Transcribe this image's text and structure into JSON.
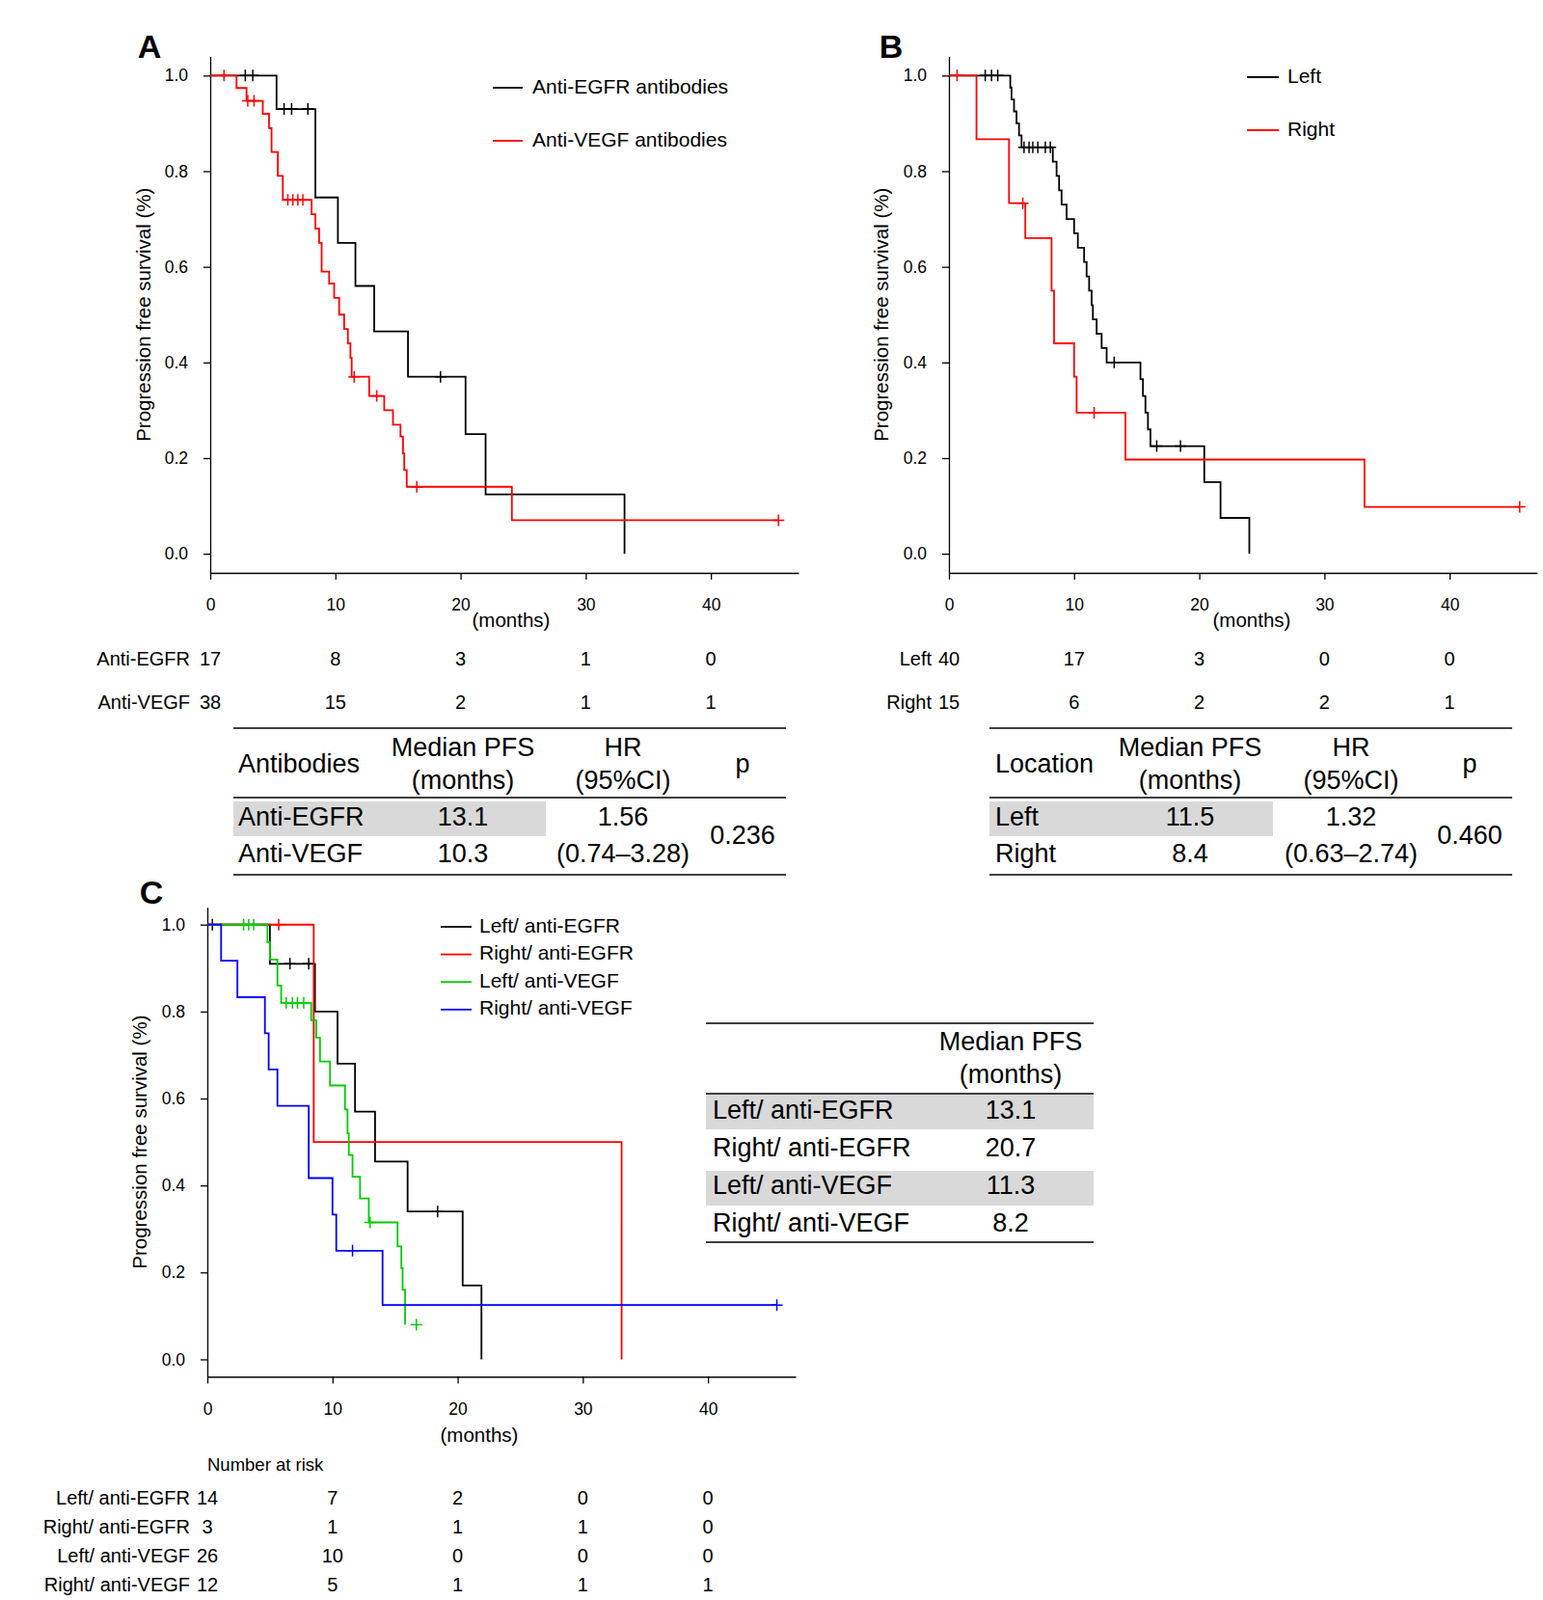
{
  "chart_data": [
    {
      "type": "line",
      "title": "A",
      "x_label": "(months)",
      "y_label": "Progression free survival (%)",
      "xlim": [
        0,
        47
      ],
      "ylim": [
        -0.04,
        1.04
      ],
      "xticks": [
        0,
        10,
        20,
        30,
        40
      ],
      "yticks": [
        {
          "value": 0,
          "label": "0.0"
        },
        0.2,
        0.4,
        0.6,
        0.8,
        {
          "value": 1,
          "label": "1.0"
        }
      ],
      "line_style": "step",
      "marker": "plus",
      "series": [
        {
          "name": "Anti-EGFR antibodies",
          "color": "#000000",
          "x": [
            0,
            5.3,
            8.4,
            10.2,
            11.6,
            13.1,
            15.8,
            20.4,
            22.0,
            33.1
          ],
          "values": [
            1,
            0.93,
            0.745,
            0.65,
            0.56,
            0.465,
            0.37,
            0.25,
            0.124,
            0
          ],
          "censor_x": [
            2.8,
            3.4,
            5.9,
            6.5,
            7.8,
            18.4
          ],
          "censor_values": [
            1,
            1,
            0.93,
            0.93,
            0.93,
            0.37
          ]
        },
        {
          "name": "Anti-VEGF antibodies",
          "color": "#ff0000",
          "x": [
            0,
            2.1,
            2.9,
            4.2,
            4.7,
            4.9,
            5.4,
            5.8,
            8.1,
            8.4,
            8.7,
            8.9,
            9.5,
            9.9,
            10.3,
            10.7,
            11.0,
            11.2,
            11.3,
            12.7,
            13.9,
            14.6,
            15.2,
            15.4,
            15.5,
            15.7,
            24.1,
            45.4
          ],
          "values": [
            1,
            0.974,
            0.947,
            0.92,
            0.89,
            0.84,
            0.79,
            0.74,
            0.71,
            0.68,
            0.65,
            0.59,
            0.565,
            0.535,
            0.5,
            0.47,
            0.44,
            0.41,
            0.37,
            0.33,
            0.3,
            0.27,
            0.245,
            0.21,
            0.175,
            0.14,
            0.07,
            0.07
          ],
          "censor_x": [
            1.1,
            3.0,
            3.5,
            6.2,
            6.6,
            7.0,
            7.4,
            11.5,
            13.3,
            16.5,
            45.4
          ],
          "censor_values": [
            1,
            0.947,
            0.947,
            0.74,
            0.74,
            0.74,
            0.74,
            0.37,
            0.33,
            0.14,
            0.07
          ]
        }
      ],
      "risk_table": {
        "rows": [
          {
            "label": "Anti-EGFR",
            "values": [
              17,
              8,
              3,
              1,
              0
            ]
          },
          {
            "label": "Anti-VEGF",
            "values": [
              38,
              15,
              2,
              1,
              1
            ]
          }
        ]
      },
      "summary_table": {
        "header": [
          [
            "Antibodies"
          ],
          [
            "Median PFS",
            "(months)"
          ],
          [
            "HR",
            "(95%CI)"
          ],
          [
            "p"
          ]
        ],
        "rows": [
          {
            "label": "Anti-EGFR",
            "median": 13.1
          },
          {
            "label": "Anti-VEGF",
            "median": 10.3
          }
        ],
        "hr": "1.56",
        "ci": "(0.74–3.28)",
        "p": "0.236"
      }
    },
    {
      "type": "line",
      "title": "B",
      "x_label": "(months)",
      "y_label": "Progression free survival (%)",
      "xlim": [
        0,
        47
      ],
      "ylim": [
        -0.04,
        1.04
      ],
      "xticks": [
        0,
        10,
        20,
        30,
        40
      ],
      "yticks": [
        {
          "value": 0,
          "label": "0.0"
        },
        0.2,
        0.4,
        0.6,
        0.8,
        {
          "value": 1,
          "label": "1.0"
        }
      ],
      "line_style": "step",
      "marker": "plus",
      "series": [
        {
          "name": "Left",
          "color": "#000000",
          "x": [
            0,
            4.9,
            5.0,
            5.2,
            5.4,
            5.6,
            5.8,
            8.3,
            8.6,
            8.8,
            9.0,
            9.4,
            10.0,
            10.3,
            10.8,
            11.0,
            11.2,
            11.4,
            11.5,
            11.8,
            12.2,
            12.6,
            15.3,
            15.5,
            15.7,
            15.9,
            16.1,
            20.4,
            21.7,
            24.0
          ],
          "values": [
            1,
            0.975,
            0.95,
            0.925,
            0.9,
            0.875,
            0.85,
            0.82,
            0.79,
            0.76,
            0.73,
            0.7,
            0.67,
            0.64,
            0.61,
            0.58,
            0.55,
            0.52,
            0.49,
            0.46,
            0.43,
            0.4,
            0.365,
            0.33,
            0.295,
            0.26,
            0.225,
            0.15,
            0.075,
            0
          ],
          "censor_x": [
            2.9,
            3.4,
            3.9,
            6.0,
            6.4,
            6.7,
            7.1,
            7.7,
            8.1,
            13.2,
            16.6,
            18.5
          ],
          "censor_values": [
            1,
            1,
            1,
            0.85,
            0.85,
            0.85,
            0.85,
            0.85,
            0.85,
            0.4,
            0.225,
            0.225
          ]
        },
        {
          "name": "Right",
          "color": "#ff0000",
          "x": [
            0,
            2.2,
            4.8,
            6.1,
            8.2,
            8.4,
            10.0,
            10.2,
            14.1,
            33.2,
            45.6
          ],
          "values": [
            1,
            0.867,
            0.733,
            0.66,
            0.55,
            0.44,
            0.37,
            0.295,
            0.197,
            0.098,
            0.098
          ],
          "censor_x": [
            0.65,
            5.9,
            11.6,
            45.6
          ],
          "censor_values": [
            1,
            0.733,
            0.295,
            0.098
          ]
        }
      ],
      "risk_table": {
        "rows": [
          {
            "label": "Left",
            "values": [
              40,
              17,
              3,
              0,
              0
            ]
          },
          {
            "label": "Right",
            "values": [
              15,
              6,
              2,
              2,
              1
            ]
          }
        ]
      },
      "summary_table": {
        "header": [
          [
            "Location"
          ],
          [
            "Median PFS",
            "(months)"
          ],
          [
            "HR",
            "(95%CI)"
          ],
          [
            "p"
          ]
        ],
        "rows": [
          {
            "label": "Left",
            "median": 11.5
          },
          {
            "label": "Right",
            "median": 8.4
          }
        ],
        "hr": "1.32",
        "ci": "(0.63–2.74)",
        "p": "0.460"
      }
    },
    {
      "type": "line",
      "title": "C",
      "x_label": "(months)",
      "y_label": "Progression free survival (%)",
      "xlim": [
        0,
        47
      ],
      "ylim": [
        -0.04,
        1.04
      ],
      "xticks": [
        0,
        10,
        20,
        30,
        40
      ],
      "yticks": [
        {
          "value": 0,
          "label": "0.0"
        },
        0.2,
        0.4,
        0.6,
        0.8,
        {
          "value": 1,
          "label": "1.0"
        }
      ],
      "line_style": "step",
      "marker": "plus",
      "series": [
        {
          "name": "Left/ anti-EGFR",
          "color": "#000000",
          "x": [
            0,
            5.0,
            8.6,
            10.4,
            11.8,
            13.4,
            16.0,
            20.4,
            21.9
          ],
          "values": [
            1,
            0.91,
            0.8,
            0.68,
            0.57,
            0.455,
            0.34,
            0.17,
            0
          ],
          "censor_x": [
            0.4,
            6.6,
            8.1,
            18.4
          ],
          "censor_values": [
            1,
            0.91,
            0.91,
            0.34
          ]
        },
        {
          "name": "Right/ anti-EGFR",
          "color": "#ff0000",
          "x": [
            0,
            8.5,
            33.1
          ],
          "values": [
            1,
            0.5,
            0
          ],
          "censor_x": [
            5.7
          ],
          "censor_values": [
            1
          ]
        },
        {
          "name": "Left/ anti-VEGF",
          "color": "#00cc00",
          "x": [
            0,
            4.8,
            5.0,
            5.6,
            5.9,
            8.3,
            8.7,
            9.0,
            9.8,
            11.0,
            11.2,
            11.3,
            11.6,
            12.2,
            12.9,
            15.2,
            15.5,
            15.6,
            15.8
          ],
          "values": [
            1,
            0.96,
            0.92,
            0.86,
            0.82,
            0.78,
            0.74,
            0.685,
            0.63,
            0.575,
            0.52,
            0.47,
            0.42,
            0.37,
            0.315,
            0.26,
            0.21,
            0.16,
            0.08
          ],
          "censor_x": [
            2.9,
            3.3,
            3.7,
            6.3,
            6.8,
            7.2,
            7.7,
            13.0,
            16.7
          ],
          "censor_values": [
            1,
            1,
            1,
            0.82,
            0.82,
            0.82,
            0.82,
            0.315,
            0.08
          ]
        },
        {
          "name": "Right/ anti-VEGF",
          "color": "#0000ff",
          "x": [
            0,
            1.1,
            2.4,
            4.6,
            4.9,
            5.6,
            8.1,
            10.0,
            10.3,
            14.0,
            45.5
          ],
          "values": [
            1,
            0.917,
            0.833,
            0.75,
            0.667,
            0.583,
            0.417,
            0.333,
            0.25,
            0.125,
            0.125
          ],
          "censor_x": [
            11.6,
            45.5
          ],
          "censor_values": [
            0.25,
            0.125
          ]
        }
      ],
      "risk_table": {
        "caption": "Number at risk",
        "rows": [
          {
            "label": "Left/ anti-EGFR",
            "values": [
              14,
              7,
              2,
              0,
              0
            ]
          },
          {
            "label": "Right/ anti-EGFR",
            "values": [
              3,
              1,
              1,
              1,
              0
            ]
          },
          {
            "label": "Left/ anti-VEGF",
            "values": [
              26,
              10,
              0,
              0,
              0
            ]
          },
          {
            "label": "Right/ anti-VEGF",
            "values": [
              12,
              5,
              1,
              1,
              1
            ]
          }
        ]
      },
      "median_table": {
        "header": [
          "Median PFS",
          "(months)"
        ],
        "rows": [
          {
            "label": "Left/ anti-EGFR",
            "median": 13.1
          },
          {
            "label": "Right/ anti-EGFR",
            "median": 20.7
          },
          {
            "label": "Left/ anti-VEGF",
            "median": 11.3
          },
          {
            "label": "Right/ anti-VEGF",
            "median": 8.2
          }
        ]
      }
    }
  ]
}
